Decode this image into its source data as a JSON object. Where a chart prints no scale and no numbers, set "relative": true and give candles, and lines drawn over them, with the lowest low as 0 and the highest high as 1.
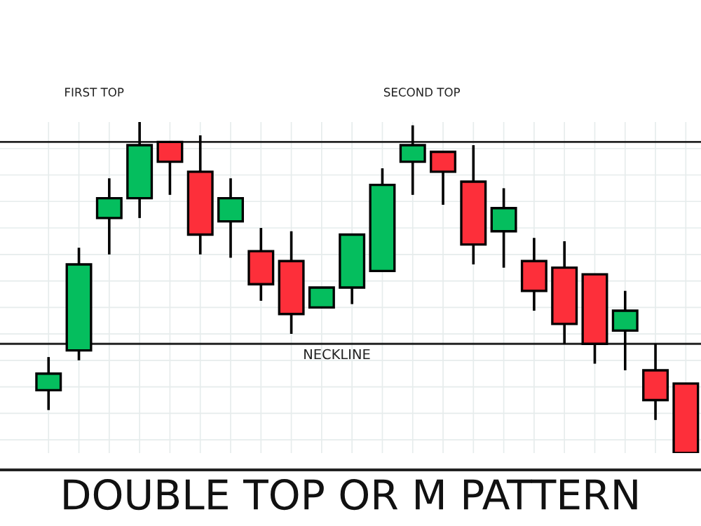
{
  "chart_data": {
    "type": "candlestick",
    "title": "DOUBLE TOP OR M PATTERN",
    "relative": true,
    "grid": true,
    "categories": [
      null,
      null,
      null,
      null,
      null,
      null,
      null,
      null,
      null,
      null,
      null,
      null,
      null,
      null,
      null,
      null,
      null,
      null,
      null,
      null,
      null,
      null
    ],
    "ohlc": [
      [
        0.19,
        0.29,
        0.13,
        0.24
      ],
      [
        0.31,
        0.62,
        0.28,
        0.57
      ],
      [
        0.71,
        0.83,
        0.6,
        0.77
      ],
      [
        0.77,
        1.0,
        0.71,
        0.93
      ],
      [
        0.94,
        0.94,
        0.78,
        0.88
      ],
      [
        0.85,
        0.96,
        0.6,
        0.66
      ],
      [
        0.7,
        0.83,
        0.59,
        0.77
      ],
      [
        0.61,
        0.68,
        0.46,
        0.51
      ],
      [
        0.58,
        0.67,
        0.36,
        0.42
      ],
      [
        0.44,
        0.5,
        0.44,
        0.5
      ],
      [
        0.5,
        0.66,
        0.45,
        0.66
      ],
      [
        0.55,
        0.86,
        0.55,
        0.81
      ],
      [
        0.88,
        0.99,
        0.78,
        0.93
      ],
      [
        0.91,
        0.91,
        0.75,
        0.85
      ],
      [
        0.82,
        0.93,
        0.57,
        0.63
      ],
      [
        0.67,
        0.8,
        0.56,
        0.74
      ],
      [
        0.58,
        0.65,
        0.43,
        0.49
      ],
      [
        0.56,
        0.64,
        0.33,
        0.39
      ],
      [
        0.54,
        0.54,
        0.27,
        0.33
      ],
      [
        0.37,
        0.49,
        0.25,
        0.43
      ],
      [
        0.25,
        0.33,
        0.1,
        0.16
      ],
      [
        0.21,
        0.21,
        0.0,
        0.0
      ]
    ],
    "colors": [
      "#05be5e",
      "#05be5e",
      "#05be5e",
      "#05be5e",
      "#fd2f3a",
      "#fd2f3a",
      "#05be5e",
      "#fd2f3a",
      "#fd2f3a",
      "#05be5e",
      "#05be5e",
      "#05be5e",
      "#05be5e",
      "#fd2f3a",
      "#fd2f3a",
      "#05be5e",
      "#fd2f3a",
      "#fd2f3a",
      "#fd2f3a",
      "#05be5e",
      "#fd2f3a",
      "#fd2f3a"
    ],
    "ref_lines": [
      {
        "axis": "y",
        "value": 0.94,
        "label": null,
        "color": "#222222"
      },
      {
        "axis": "y",
        "value": 0.33,
        "label": "NECKLINE",
        "color": "#222222"
      }
    ],
    "annotations": [
      "FIRST TOP",
      "SECOND TOP"
    ]
  }
}
